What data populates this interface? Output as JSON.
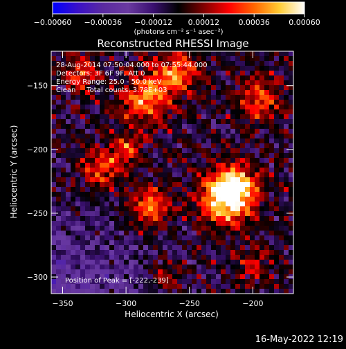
{
  "chart_data": {
    "type": "heatmap",
    "title": "Reconstructed RHESSI Image",
    "xlabel": "Heliocentric X (arcsec)",
    "ylabel": "Heliocentric Y (arcsec)",
    "xlim": [
      -359,
      -168
    ],
    "ylim": [
      -313,
      -123
    ],
    "x_ticks": [
      {
        "value": -350,
        "label": "−350"
      },
      {
        "value": -300,
        "label": "−300"
      },
      {
        "value": -250,
        "label": "−250"
      },
      {
        "value": -200,
        "label": "−200"
      }
    ],
    "y_ticks": [
      {
        "value": -150,
        "label": "−150"
      },
      {
        "value": -200,
        "label": "−200"
      },
      {
        "value": -250,
        "label": "−250"
      },
      {
        "value": -300,
        "label": "−300"
      }
    ],
    "colorbar": {
      "range": [
        -0.0006,
        0.0006
      ],
      "tick_values": [
        -0.0006,
        -0.00036,
        -0.00012,
        0.00012,
        0.00036,
        0.0006
      ],
      "tick_labels": [
        "−0.00060",
        "−0.00036",
        "−0.00012",
        "0.00012",
        "0.00036",
        "0.00060"
      ],
      "units": "(photons cm⁻² s⁻¹ asec⁻²)",
      "colors": [
        "#0000ff",
        "#3a10c8",
        "#5a2aa0",
        "#6a3aa0",
        "#3a1070",
        "#000000",
        "#800000",
        "#ff0000",
        "#ff6600",
        "#ffcc33",
        "#ffffff"
      ]
    },
    "peak": {
      "x": -222,
      "y": -239
    },
    "annotations": [
      "28-Aug-2014 07:50:04.000 to 07:55:44.000",
      "Detectors: 3F 6F 9F, Att 0",
      "Energy Range: 25.0 - 50.0 keV",
      "Clean     Total counts: 3.78E+03",
      "Position of Peak = [-222,-239]"
    ],
    "timestamp": "16-May-2022 12:19"
  }
}
